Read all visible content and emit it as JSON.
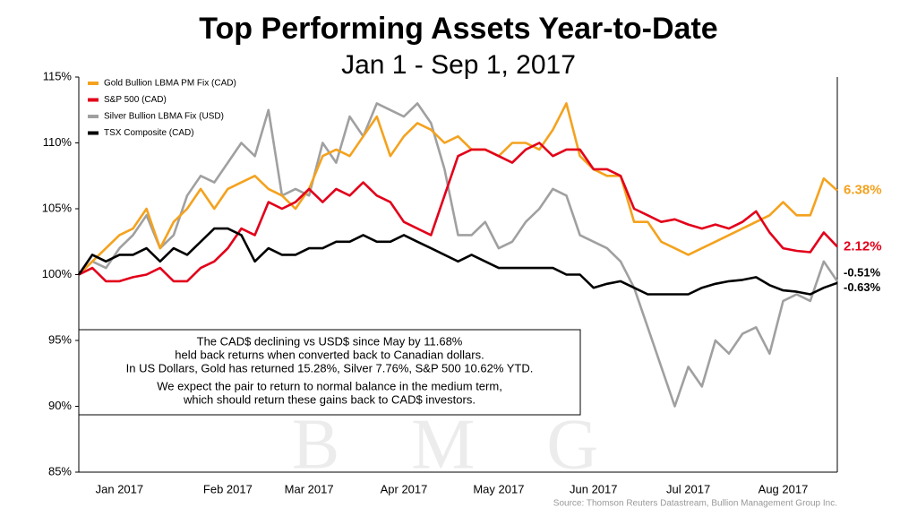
{
  "chart_data": {
    "type": "line",
    "title": "Top Performing Assets Year-to-Date",
    "subtitle": "Jan 1 - Sep 1, 2017",
    "categories": [
      null,
      null,
      null,
      "Jan 2017",
      null,
      null,
      null,
      null,
      null,
      null,
      null,
      "Feb 2017",
      null,
      null,
      null,
      null,
      null,
      "Mar 2017",
      null,
      null,
      null,
      null,
      null,
      null,
      "Apr 2017",
      null,
      null,
      null,
      null,
      null,
      null,
      "May 2017",
      null,
      null,
      null,
      null,
      null,
      null,
      "Jun 2017",
      null,
      null,
      null,
      null,
      null,
      null,
      "Jul 2017",
      null,
      null,
      null,
      null,
      null,
      null,
      "Aug 2017",
      null,
      null,
      null,
      null
    ],
    "series": [
      {
        "name": "Gold Bullion LBMA PM Fix (CAD)",
        "color": "#f4a21e",
        "values": [
          100,
          101,
          102,
          103,
          103.5,
          105,
          102,
          104,
          105,
          106.5,
          105,
          106.5,
          107,
          107.5,
          106.5,
          106,
          105,
          106.5,
          109,
          109.5,
          109,
          110.5,
          112,
          109,
          110.5,
          111.5,
          111,
          110,
          110.5,
          109.5,
          109.5,
          109,
          110,
          110,
          109.5,
          111,
          113,
          109,
          108,
          107.5,
          107.5,
          104,
          104,
          102.5,
          102,
          101.5,
          102,
          102.5,
          103,
          103.5,
          104,
          104.5,
          105.5,
          104.5,
          104.5,
          107.3,
          106.38
        ]
      },
      {
        "name": "S&P 500 (CAD)",
        "color": "#e2001a",
        "values": [
          100,
          100.5,
          99.5,
          99.5,
          99.8,
          100,
          100.5,
          99.5,
          99.5,
          100.5,
          101,
          102,
          103.5,
          103,
          105.5,
          105,
          105.5,
          106.5,
          105.5,
          106.5,
          106,
          107,
          106,
          105.5,
          104,
          103.5,
          103,
          106,
          109,
          109.5,
          109.5,
          109,
          108.5,
          109.5,
          110,
          109,
          109.5,
          109.5,
          108,
          108,
          107.5,
          105,
          104.5,
          104,
          104.2,
          103.8,
          103.5,
          103.8,
          103.5,
          104,
          104.8,
          103.2,
          102,
          101.8,
          101.7,
          103.2,
          102.12
        ]
      },
      {
        "name": "Silver Bullion LBMA Fix (USD)",
        "color": "#a0a0a0",
        "values": [
          100,
          101,
          100.5,
          102,
          103,
          104.5,
          102,
          103,
          106,
          107.5,
          107,
          108.5,
          110,
          109,
          112.5,
          106,
          106.5,
          106,
          110,
          108.5,
          112,
          110.5,
          113,
          112.5,
          112,
          113,
          111.5,
          108,
          103,
          103,
          104,
          102,
          102.5,
          104,
          105,
          106.5,
          106,
          103,
          102.5,
          102,
          101,
          99,
          96,
          93,
          90,
          93,
          91.5,
          95,
          94,
          95.5,
          96,
          94,
          98,
          98.5,
          98,
          101,
          99.49
        ]
      },
      {
        "name": "TSX Composite (CAD)",
        "color": "#000000",
        "values": [
          100,
          101.5,
          101,
          101.5,
          101.5,
          102,
          101,
          102,
          101.5,
          102.5,
          103.5,
          103.5,
          103,
          101,
          102,
          101.5,
          101.5,
          102,
          102,
          102.5,
          102.5,
          103,
          102.5,
          102.5,
          103,
          102.5,
          102,
          101.5,
          101,
          101.5,
          101,
          100.5,
          100.5,
          100.5,
          100.5,
          100.5,
          100,
          100,
          99,
          99.3,
          99.5,
          99,
          98.5,
          98.5,
          98.5,
          98.5,
          99,
          99.3,
          99.5,
          99.6,
          99.8,
          99.2,
          98.8,
          98.7,
          98.5,
          99,
          99.37
        ]
      }
    ],
    "end_labels": [
      "6.38%",
      "2.12%",
      "-0.51%",
      "-0.63%"
    ],
    "end_label_colors": [
      "#f4a21e",
      "#e2001a",
      "#000000",
      "#000000"
    ],
    "ylim": [
      85,
      115
    ],
    "yticks": [
      {
        "value": 85,
        "label": "85%"
      },
      {
        "value": 90,
        "label": "90%"
      },
      {
        "value": 95,
        "label": "95%"
      },
      {
        "value": 100,
        "label": "100%"
      },
      {
        "value": 105,
        "label": "105%"
      },
      {
        "value": 110,
        "label": "110%"
      },
      {
        "value": 115,
        "label": "115%"
      }
    ],
    "note": [
      "The CAD$ declining vs USD$ since May by 11.68%",
      "held back returns when converted back to Canadian dollars.",
      "In US Dollars, Gold has returned 15.28%, Silver 7.76%, S&P 500 10.62% YTD.",
      "We expect the pair to return to normal balance in the medium term,",
      "which should return these gains back to CAD$ investors."
    ],
    "watermark": "B M G",
    "source": "Source: Thomson Reuters Datastream, Bullion Management Group Inc."
  }
}
